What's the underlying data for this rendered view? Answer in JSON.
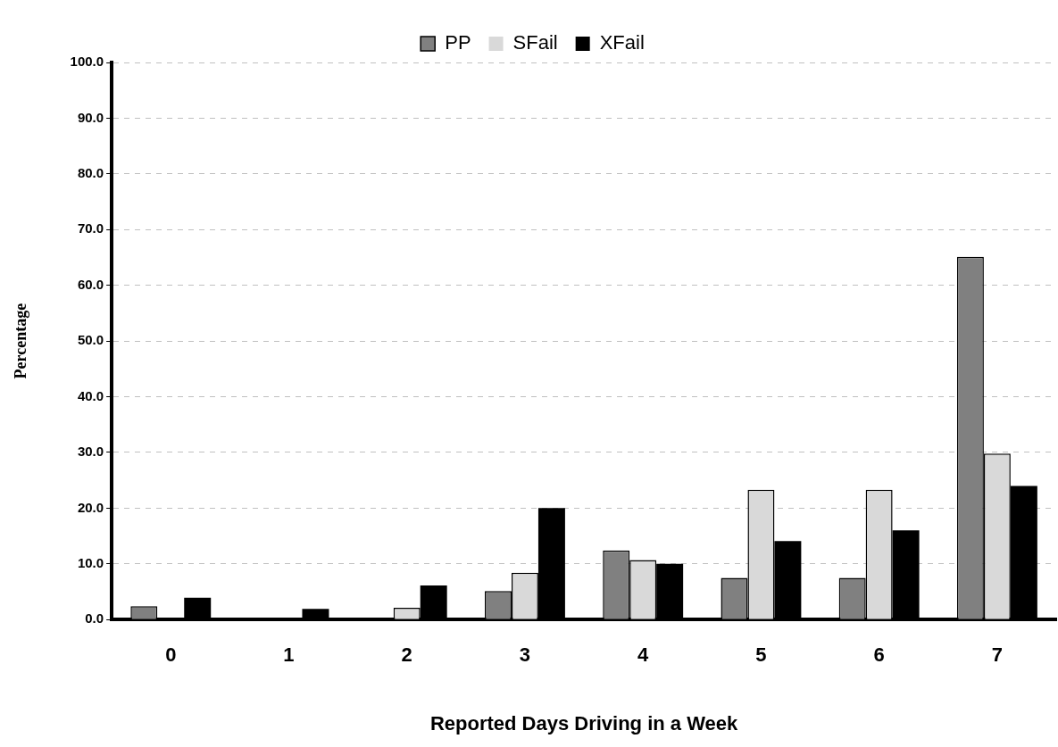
{
  "chart_data": {
    "type": "bar",
    "xlabel": "Reported Days Driving in a Week",
    "ylabel": "Percentage",
    "categories": [
      "0",
      "1",
      "2",
      "3",
      "4",
      "5",
      "6",
      "7"
    ],
    "series": [
      {
        "name": "PP",
        "color": "#808080",
        "values": [
          2.4,
          0,
          0,
          5.1,
          12.4,
          7.5,
          7.5,
          65.1
        ]
      },
      {
        "name": "SFail",
        "color": "#d9d9d9",
        "values": [
          0,
          0,
          2.1,
          8.4,
          10.7,
          23.3,
          23.3,
          29.8
        ]
      },
      {
        "name": "XFail",
        "color": "#000000",
        "values": [
          3.9,
          1.9,
          6.1,
          20.0,
          10.0,
          14.1,
          16.0,
          24.0
        ]
      }
    ],
    "ylim": [
      0,
      100
    ],
    "yticks": [
      {
        "value": 0,
        "label": "0.0"
      },
      {
        "value": 10,
        "label": "10.0"
      },
      {
        "value": 20,
        "label": "20.0"
      },
      {
        "value": 30,
        "label": "30.0"
      },
      {
        "value": 40,
        "label": "40.0"
      },
      {
        "value": 50,
        "label": "50.0"
      },
      {
        "value": 60,
        "label": "60.0"
      },
      {
        "value": 70,
        "label": "70.0"
      },
      {
        "value": 80,
        "label": "80.0"
      },
      {
        "value": 90,
        "label": "90.0"
      },
      {
        "value": 100,
        "label": "100.0"
      }
    ],
    "grid": "y",
    "legend": "top"
  }
}
